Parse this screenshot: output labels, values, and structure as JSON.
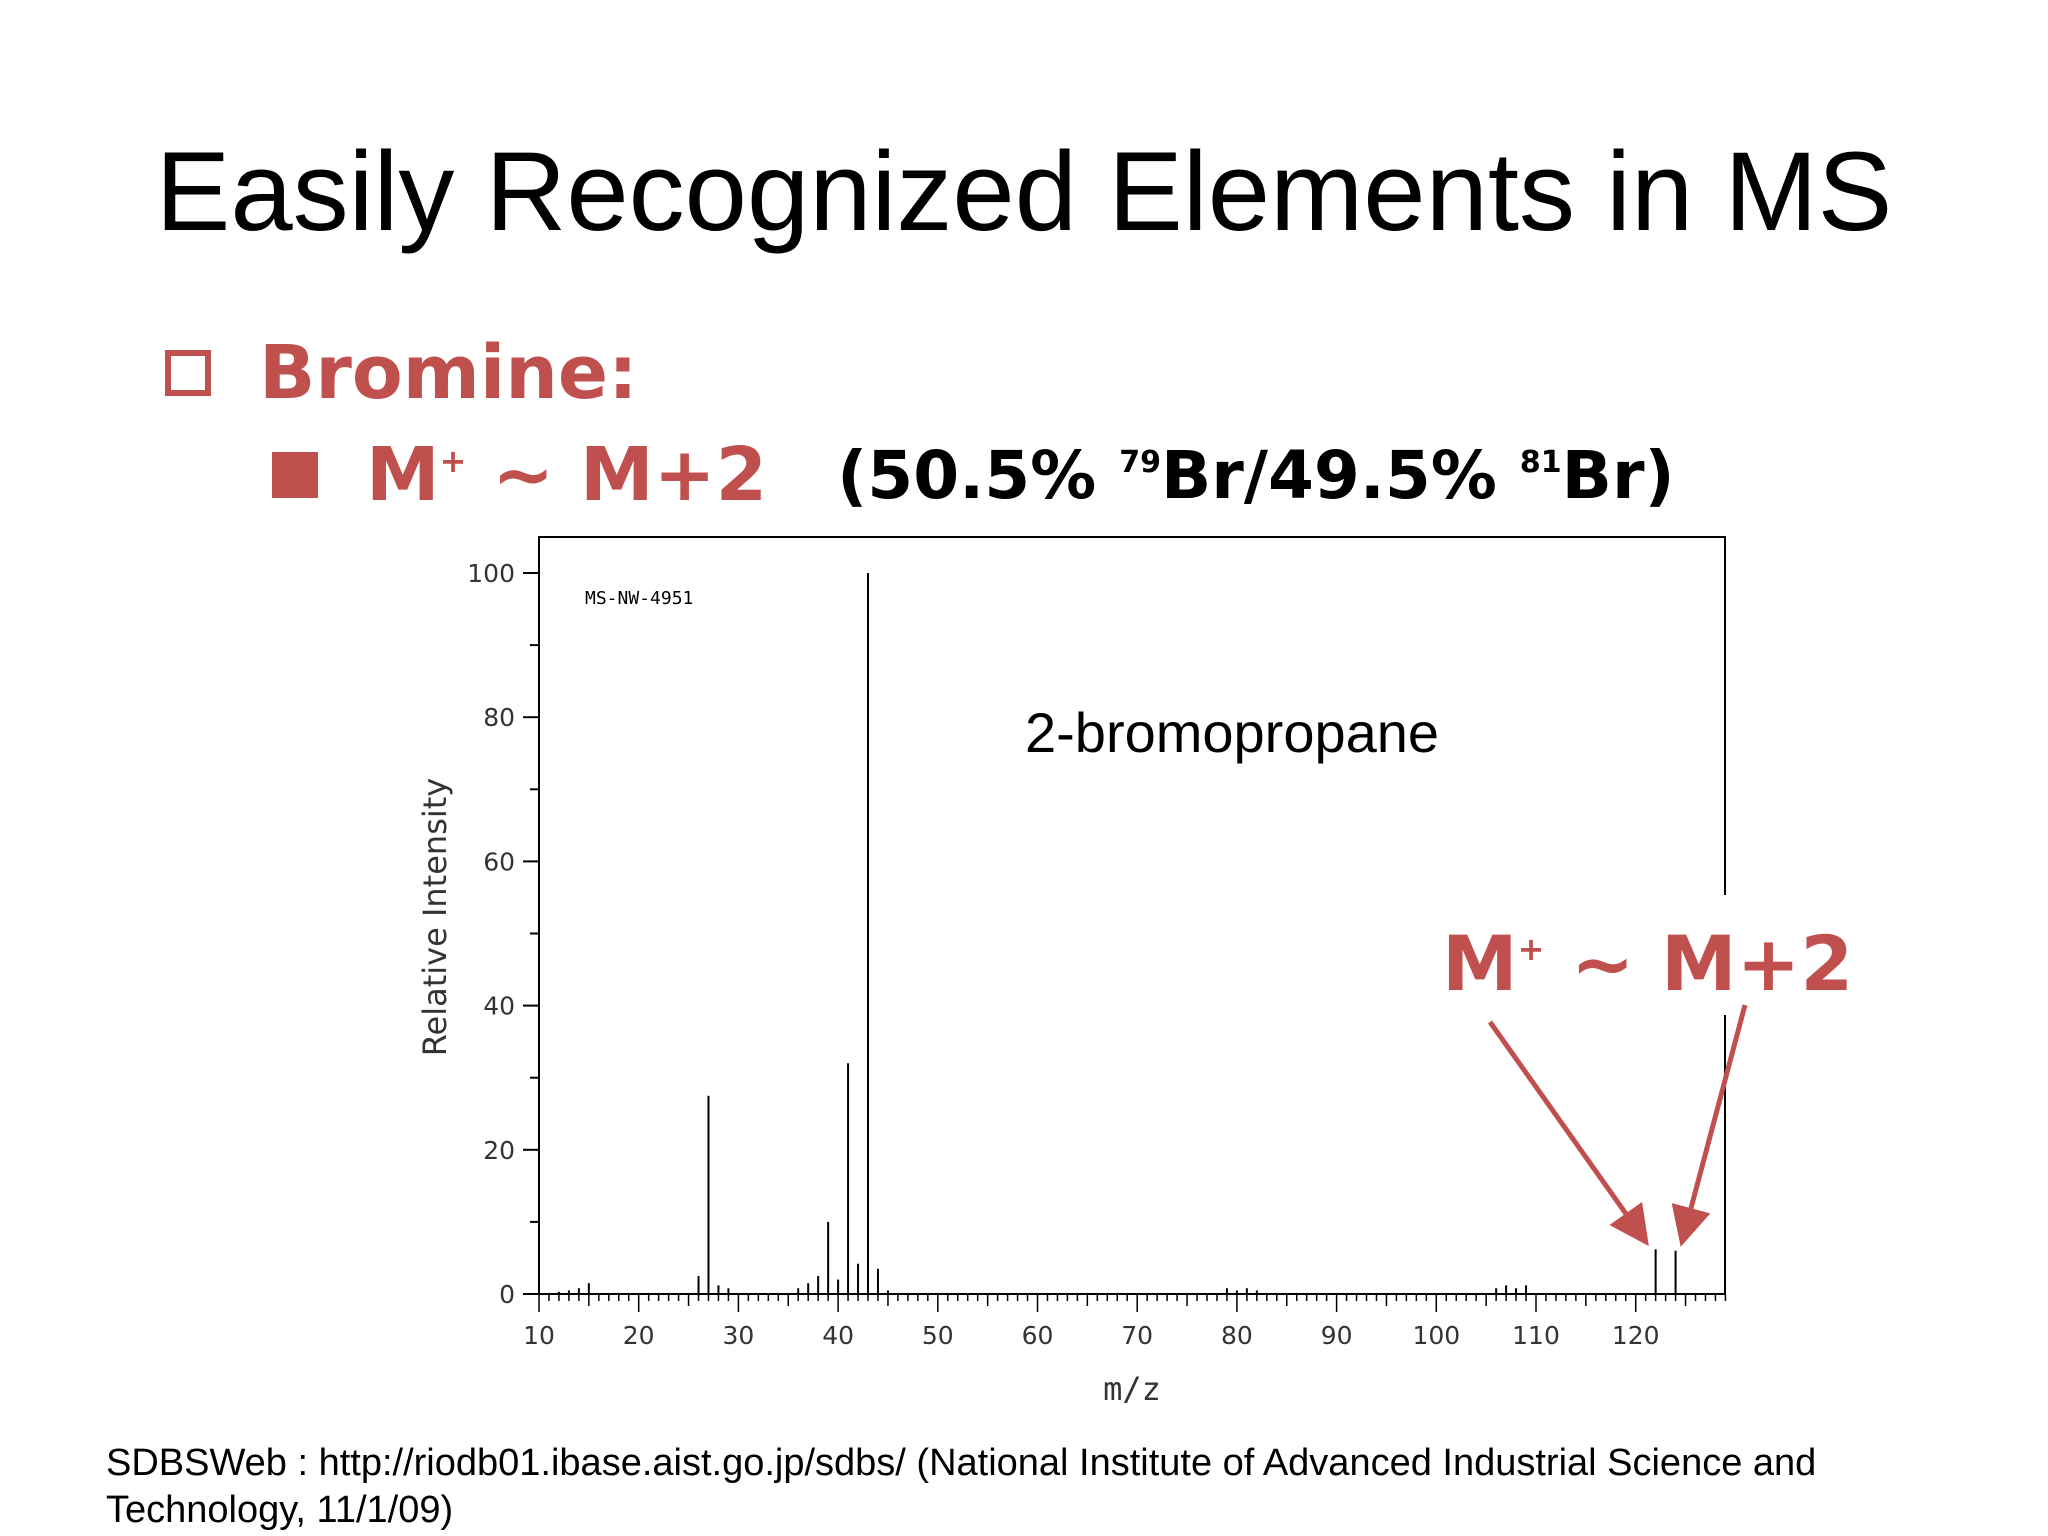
{
  "slide": {
    "title": "Easily Recognized Elements in MS",
    "bullet1": "Bromine:",
    "bullet2_m": "M",
    "bullet2_sup": "+",
    "bullet2_rest": " ~ M+2",
    "iso_open": "(50.5% ",
    "iso_sup1": "79",
    "iso_mid": "Br/49.5% ",
    "iso_sup2": "81",
    "iso_close": "Br)",
    "footer": "SDBSWeb : http://riodb01.ibase.aist.go.jp/sdbs/ (National Institute of Advanced Industrial Science and Technology, 11/1/09)"
  },
  "chart_data": {
    "type": "bar",
    "spectrum_id": "MS-NW-4951",
    "compound_label": "2-bromopropane",
    "xlabel": "m/z",
    "ylabel": "Relative Intensity",
    "xlim": [
      10,
      129
    ],
    "ylim": [
      0,
      105
    ],
    "xticks": [
      10,
      20,
      30,
      40,
      50,
      60,
      70,
      80,
      90,
      100,
      110,
      120
    ],
    "yticks": [
      0,
      20,
      40,
      60,
      80,
      100
    ],
    "annotation": {
      "main": "M",
      "sup": "+",
      "rest": " ~ M+2",
      "arrow_targets": [
        122,
        124
      ]
    },
    "peaks": [
      {
        "mz": 12,
        "i": 0.3
      },
      {
        "mz": 13,
        "i": 0.5
      },
      {
        "mz": 14,
        "i": 0.8
      },
      {
        "mz": 15,
        "i": 1.5
      },
      {
        "mz": 26,
        "i": 2.5
      },
      {
        "mz": 27,
        "i": 27.5
      },
      {
        "mz": 28,
        "i": 1.2
      },
      {
        "mz": 29,
        "i": 0.8
      },
      {
        "mz": 36,
        "i": 0.8
      },
      {
        "mz": 37,
        "i": 1.5
      },
      {
        "mz": 38,
        "i": 2.5
      },
      {
        "mz": 39,
        "i": 10
      },
      {
        "mz": 40,
        "i": 2
      },
      {
        "mz": 41,
        "i": 32
      },
      {
        "mz": 42,
        "i": 4.2
      },
      {
        "mz": 43,
        "i": 100
      },
      {
        "mz": 44,
        "i": 3.5
      },
      {
        "mz": 45,
        "i": 0.5
      },
      {
        "mz": 79,
        "i": 0.8
      },
      {
        "mz": 80,
        "i": 0.5
      },
      {
        "mz": 81,
        "i": 0.8
      },
      {
        "mz": 82,
        "i": 0.5
      },
      {
        "mz": 106,
        "i": 0.8
      },
      {
        "mz": 107,
        "i": 1.2
      },
      {
        "mz": 108,
        "i": 0.8
      },
      {
        "mz": 109,
        "i": 1.2
      },
      {
        "mz": 122,
        "i": 6.2
      },
      {
        "mz": 124,
        "i": 6
      }
    ]
  }
}
